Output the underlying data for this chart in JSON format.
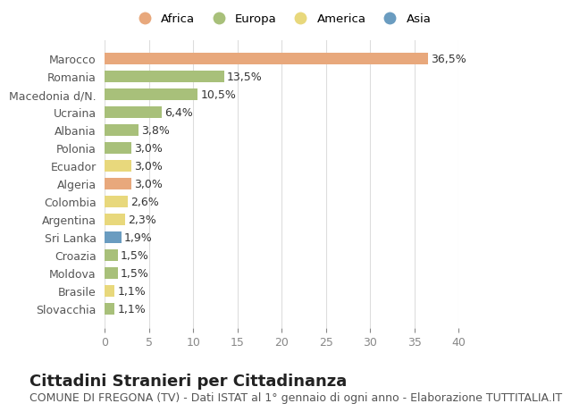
{
  "categories": [
    "Slovacchia",
    "Brasile",
    "Moldova",
    "Croazia",
    "Sri Lanka",
    "Argentina",
    "Colombia",
    "Algeria",
    "Ecuador",
    "Polonia",
    "Albania",
    "Ucraina",
    "Macedonia d/N.",
    "Romania",
    "Marocco"
  ],
  "values": [
    1.1,
    1.1,
    1.5,
    1.5,
    1.9,
    2.3,
    2.6,
    3.0,
    3.0,
    3.0,
    3.8,
    6.4,
    10.5,
    13.5,
    36.5
  ],
  "labels": [
    "1,1%",
    "1,1%",
    "1,5%",
    "1,5%",
    "1,9%",
    "2,3%",
    "2,6%",
    "3,0%",
    "3,0%",
    "3,0%",
    "3,8%",
    "6,4%",
    "10,5%",
    "13,5%",
    "36,5%"
  ],
  "continents": [
    "Europa",
    "America",
    "Europa",
    "Europa",
    "Asia",
    "America",
    "America",
    "Africa",
    "America",
    "Europa",
    "Europa",
    "Europa",
    "Europa",
    "Europa",
    "Africa"
  ],
  "colors": {
    "Africa": "#E8A87C",
    "Europa": "#A8C07A",
    "America": "#E8D87C",
    "Asia": "#6A9CC0"
  },
  "legend_order": [
    "Africa",
    "Europa",
    "America",
    "Asia"
  ],
  "xlim": [
    0,
    40
  ],
  "xticks": [
    0,
    5,
    10,
    15,
    20,
    25,
    30,
    35,
    40
  ],
  "title": "Cittadini Stranieri per Cittadinanza",
  "subtitle": "COMUNE DI FREGONA (TV) - Dati ISTAT al 1° gennaio di ogni anno - Elaborazione TUTTITALIA.IT",
  "bg_color": "#FFFFFF",
  "grid_color": "#DDDDDD",
  "bar_height": 0.65,
  "label_fontsize": 9,
  "tick_fontsize": 9,
  "title_fontsize": 13,
  "subtitle_fontsize": 9
}
